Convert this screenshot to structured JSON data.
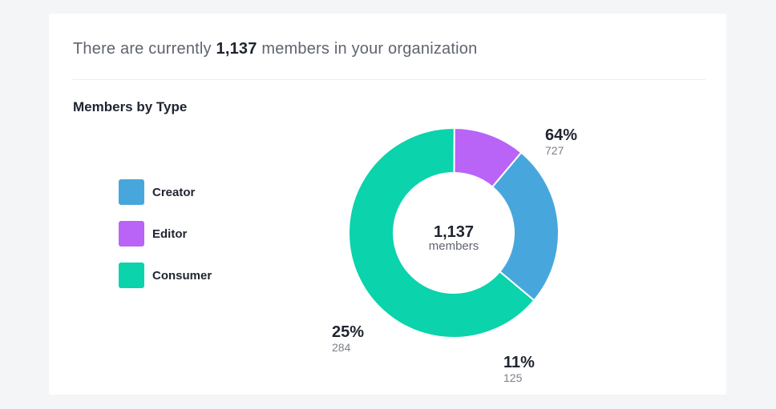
{
  "headline": {
    "prefix": "There are currently",
    "count": "1,137",
    "suffix": "members in your organization"
  },
  "section_title": "Members by Type",
  "legend": [
    {
      "label": "Creator",
      "color": "#47a7dc"
    },
    {
      "label": "Editor",
      "color": "#b964f7"
    },
    {
      "label": "Consumer",
      "color": "#0bd3ac"
    }
  ],
  "chart_data": {
    "type": "pie",
    "variant": "donut",
    "center": {
      "value": "1,137",
      "label": "members"
    },
    "slices": [
      {
        "name": "Consumer",
        "value": 727,
        "percent_label": "64%",
        "count_label": "727",
        "color": "#0bd3ac"
      },
      {
        "name": "Editor",
        "value": 125,
        "percent_label": "11%",
        "count_label": "125",
        "color": "#b964f7"
      },
      {
        "name": "Creator",
        "value": 284,
        "percent_label": "25%",
        "count_label": "284",
        "color": "#47a7dc"
      }
    ],
    "legend_position": "left"
  }
}
